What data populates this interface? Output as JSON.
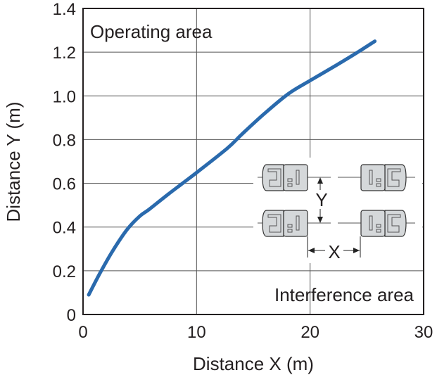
{
  "chart_data": {
    "type": "line",
    "title": "",
    "xlabel": "Distance X (m)",
    "ylabel": "Distance Y (m)",
    "xlim": [
      0,
      30
    ],
    "ylim": [
      0,
      1.4
    ],
    "xticks": [
      "0",
      "10",
      "20",
      "30"
    ],
    "yticks": [
      "0",
      "0.2",
      "0.4",
      "0.6",
      "0.8",
      "1.0",
      "1.2",
      "1.4"
    ],
    "grid": true,
    "series": [
      {
        "color": "#2a6aad",
        "x": [
          0.5,
          1.5,
          2.6,
          3.9,
          5.0,
          5.8,
          7.5,
          9.9,
          12.7,
          14.0,
          16.0,
          18.1,
          20.0,
          22.3,
          24.2,
          25.7
        ],
        "y": [
          0.09,
          0.19,
          0.29,
          0.39,
          0.45,
          0.48,
          0.55,
          0.645,
          0.76,
          0.825,
          0.92,
          1.01,
          1.07,
          1.14,
          1.2,
          1.25
        ]
      }
    ],
    "annotations": {
      "top_left": "Operating area",
      "bottom_right": "Interference area",
      "diagram_x": "X",
      "diagram_y": "Y"
    }
  }
}
